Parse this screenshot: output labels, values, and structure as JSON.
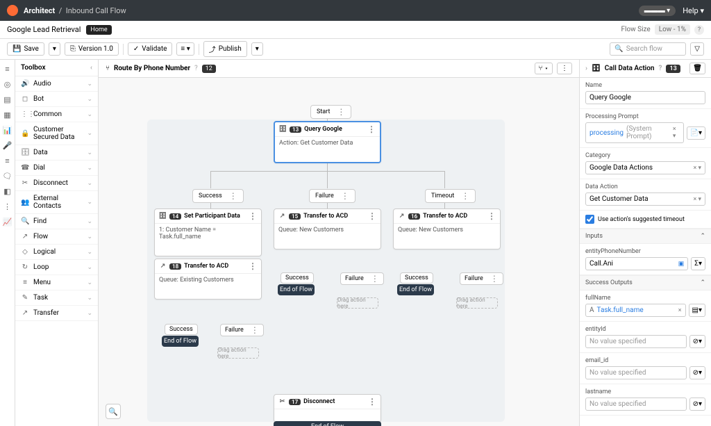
{
  "topbar": {
    "app": "Architect",
    "flow": "Inbound Call Flow",
    "help": "Help"
  },
  "subhead": {
    "title": "Google Lead Retrieval",
    "home": "Home",
    "flowsize_label": "Flow Size",
    "flowsize_value": "Low - 1%"
  },
  "toolbar": {
    "save": "Save",
    "version": "Version 1.0",
    "validate": "Validate",
    "publish": "Publish",
    "search_placeholder": "Search flow"
  },
  "toolbox": {
    "title": "Toolbox",
    "items": [
      {
        "icon": "🔊",
        "label": "Audio"
      },
      {
        "icon": "◻",
        "label": "Bot"
      },
      {
        "icon": "⋮⋮",
        "label": "Common"
      },
      {
        "icon": "🔒",
        "label": "Customer Secured Data"
      },
      {
        "icon": "🗄",
        "label": "Data"
      },
      {
        "icon": "☎",
        "label": "Dial"
      },
      {
        "icon": "✂",
        "label": "Disconnect"
      },
      {
        "icon": "👥",
        "label": "External Contacts"
      },
      {
        "icon": "🔍",
        "label": "Find"
      },
      {
        "icon": "↗",
        "label": "Flow"
      },
      {
        "icon": "◇",
        "label": "Logical"
      },
      {
        "icon": "↻",
        "label": "Loop"
      },
      {
        "icon": "≡",
        "label": "Menu"
      },
      {
        "icon": "✎",
        "label": "Task"
      },
      {
        "icon": "↗",
        "label": "Transfer"
      }
    ]
  },
  "canvashead": {
    "title": "Route By Phone Number",
    "badge": "12"
  },
  "nodes": {
    "start": "Start",
    "n13": {
      "num": "13",
      "title": "Query Google",
      "body": "Action: Get Customer Data"
    },
    "n14": {
      "num": "14",
      "title": "Set Participant Data",
      "body": "1: Customer Name = Task.full_name"
    },
    "n15": {
      "num": "15",
      "title": "Transfer to ACD",
      "body": "Queue: New Customers"
    },
    "n16": {
      "num": "16",
      "title": "Transfer to ACD",
      "body": "Queue: New Customers"
    },
    "n17": {
      "num": "17",
      "title": "Disconnect"
    },
    "n18": {
      "num": "18",
      "title": "Transfer to ACD",
      "body": "Queue: Existing Customers"
    }
  },
  "branches": {
    "success": "Success",
    "failure": "Failure",
    "timeout": "Timeout"
  },
  "endflow": "End of Flow",
  "drophint": "Drag action here",
  "rpanel": {
    "title": "Call Data Action",
    "badge": "13",
    "name_label": "Name",
    "name_value": "Query Google",
    "prompt_label": "Processing Prompt",
    "prompt_value": "processing",
    "prompt_suffix": "(System Prompt)",
    "category_label": "Category",
    "category_value": "Google Data Actions",
    "action_label": "Data Action",
    "action_value": "Get Customer Data",
    "checkbox": "Use action's suggested timeout",
    "inputs": "Inputs",
    "entityPhone_label": "entityPhoneNumber",
    "entityPhone_value": "Call.Ani",
    "outputs": "Success Outputs",
    "fullname_label": "fullName",
    "fullname_value": "Task.full_name",
    "entityId_label": "entityId",
    "novalue": "No value specified",
    "email_label": "email_id",
    "lastname_label": "lastname"
  }
}
